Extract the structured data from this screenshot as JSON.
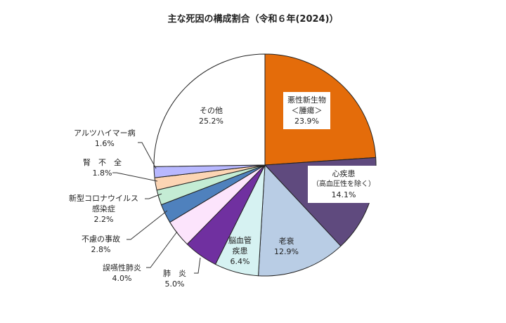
{
  "chart_data": {
    "type": "pie",
    "title": "主な死因の構成割合（令和６年(2024)）",
    "start": "12 o'clock, clockwise",
    "slices": [
      {
        "name": "悪性新生物＜腫瘍＞",
        "l1": "悪性新生物",
        "l2": "＜腫瘍＞",
        "value": 23.9,
        "label": "23.9%",
        "color": "#e46c0a"
      },
      {
        "name": "心疾患（高血圧性を除く）",
        "l1": "心疾患",
        "l2": "（高血圧性を除く）",
        "value": 14.1,
        "label": "14.1%",
        "color": "#5f4a7e"
      },
      {
        "name": "老衰",
        "l1": "老衰",
        "value": 12.9,
        "label": "12.9%",
        "color": "#b9cde5"
      },
      {
        "name": "脳血管疾患",
        "l1": "脳血管",
        "l2": "疾患",
        "value": 6.4,
        "label": "6.4%",
        "color": "#d6f2f2"
      },
      {
        "name": "肺炎",
        "l1": "肺　炎",
        "value": 5.0,
        "label": "5.0%",
        "color": "#7030a0"
      },
      {
        "name": "誤嚥性肺炎",
        "l1": "誤嚥性肺炎",
        "value": 4.0,
        "label": "4.0%",
        "color": "#fce4fc"
      },
      {
        "name": "不慮の事故",
        "l1": "不慮の事故",
        "value": 2.8,
        "label": "2.8%",
        "color": "#4f81bd"
      },
      {
        "name": "新型コロナウイルス感染症",
        "l1": "新型コロナウイルス",
        "l2": "感染症",
        "value": 2.2,
        "label": "2.2%",
        "color": "#c4ecd4"
      },
      {
        "name": "腎不全",
        "l1": "腎　不　全",
        "value": 1.8,
        "label": "1.8%",
        "color": "#fcd5b4"
      },
      {
        "name": "アルツハイマー病",
        "l1": "アルツハイマー病",
        "value": 1.6,
        "label": "1.6%",
        "color": "#b8b8ff"
      },
      {
        "name": "その他",
        "l1": "その他",
        "value": 25.2,
        "label": "25.2%",
        "color": "#ffffff"
      }
    ]
  }
}
